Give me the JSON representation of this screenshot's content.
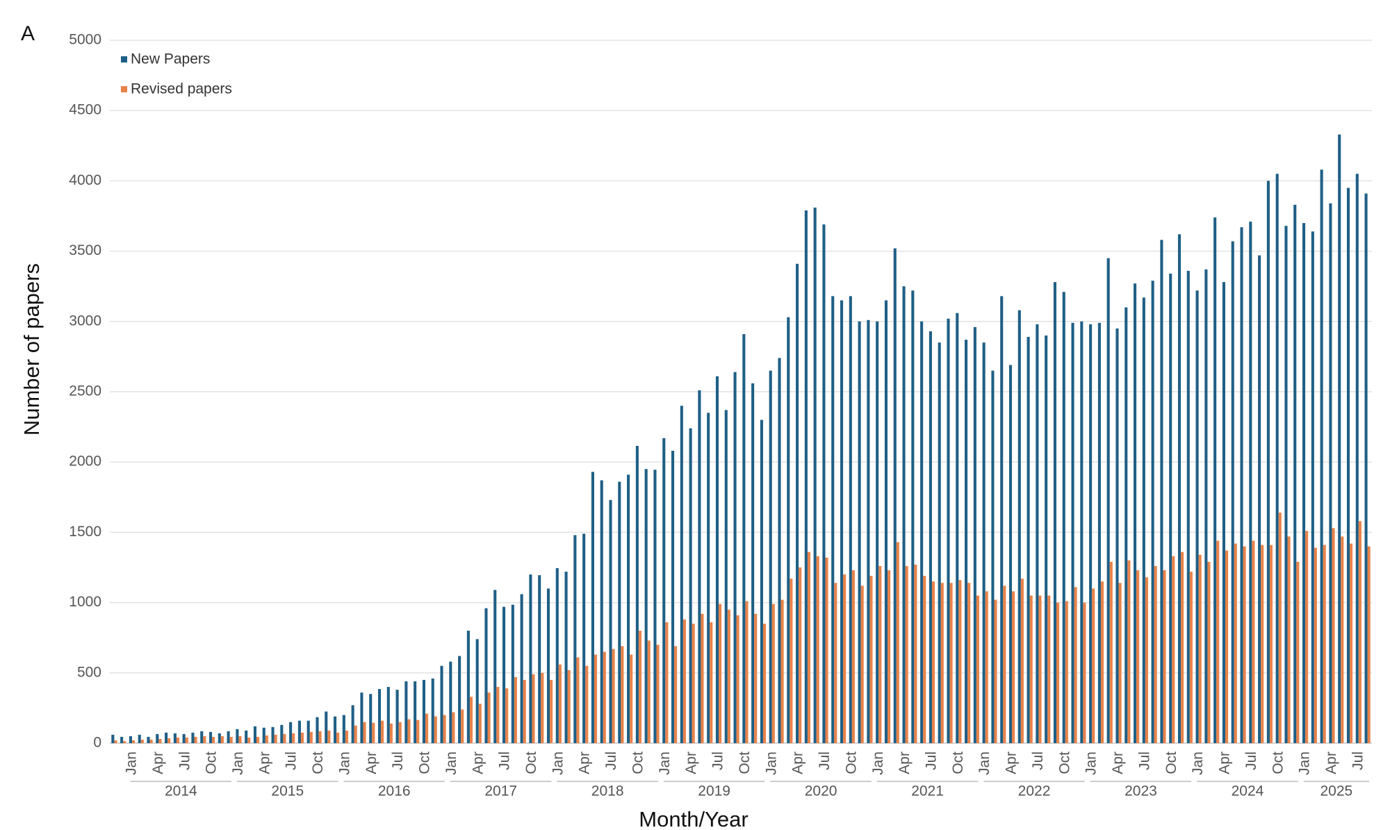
{
  "chart_data": {
    "type": "bar",
    "panel_label": "A",
    "x_label": "Month/Year",
    "y_label": "Number of papers",
    "categories": [
      null,
      null,
      "Jan",
      null,
      null,
      "Apr",
      null,
      null,
      "Jul",
      null,
      null,
      "Oct",
      null,
      null,
      "Jan",
      null,
      null,
      "Apr",
      null,
      null,
      "Jul",
      null,
      null,
      "Oct",
      null,
      null,
      "Jan",
      null,
      null,
      "Apr",
      null,
      null,
      "Jul",
      null,
      null,
      "Oct",
      null,
      null,
      "Jan",
      null,
      null,
      "Apr",
      null,
      null,
      "Jul",
      null,
      null,
      "Oct",
      null,
      null,
      "Jan",
      null,
      null,
      "Apr",
      null,
      null,
      "Jul",
      null,
      null,
      "Oct",
      null,
      null,
      "Jan",
      null,
      null,
      "Apr",
      null,
      null,
      "Jul",
      null,
      null,
      "Oct",
      null,
      null,
      "Jan",
      null,
      null,
      "Apr",
      null,
      null,
      "Jul",
      null,
      null,
      "Oct",
      null,
      null,
      "Jan",
      null,
      null,
      "Apr",
      null,
      null,
      "Jul",
      null,
      null,
      "Oct",
      null,
      null,
      "Jan",
      null,
      null,
      "Apr",
      null,
      null,
      "Jul",
      null,
      null,
      "Oct",
      null,
      null,
      "Jan",
      null,
      null,
      "Apr",
      null,
      null,
      "Jul",
      null,
      null,
      "Oct",
      null,
      null,
      "Jan",
      null,
      null,
      "Apr",
      null,
      null,
      "Jul",
      null,
      null,
      "Oct",
      null,
      null,
      "Jan",
      null,
      null,
      "Apr",
      null,
      null,
      "Jul",
      null
    ],
    "groups": [
      "2014",
      "2015",
      "2016",
      "2017",
      "2018",
      "2019",
      "2020",
      "2021",
      "2022",
      "2023",
      "2024",
      "2025"
    ],
    "series": [
      {
        "name": "New Papers",
        "color": "#1f5f85",
        "values": [
          60,
          45,
          50,
          60,
          45,
          65,
          75,
          70,
          65,
          75,
          85,
          80,
          70,
          85,
          100,
          90,
          120,
          110,
          115,
          130,
          150,
          160,
          160,
          185,
          225,
          190,
          200,
          270,
          360,
          350,
          385,
          400,
          380,
          440,
          440,
          450,
          460,
          550,
          580,
          620,
          800,
          740,
          960,
          1090,
          970,
          985,
          1060,
          1200,
          1195,
          1100,
          1245,
          1220,
          1480,
          1490,
          1930,
          1870,
          1730,
          1860,
          1910,
          2115,
          1950,
          1945,
          2170,
          2080,
          2400,
          2240,
          2510,
          2350,
          2610,
          2370,
          2640,
          2910,
          2560,
          2300,
          2650,
          2740,
          3030,
          3410,
          3790,
          3810,
          3690,
          3180,
          3150,
          3180,
          3000,
          3010,
          3000,
          3150,
          3520,
          3250,
          3220,
          3000,
          2930,
          2850,
          3020,
          3060,
          2870,
          2960,
          2850,
          2650,
          3180,
          2690,
          3080,
          2890,
          2980,
          2900,
          3280,
          3210,
          2990,
          3000,
          2980,
          2990,
          3450,
          2950,
          3100,
          3270,
          3170,
          3290,
          3580,
          3340,
          3620,
          3360,
          3220,
          3370,
          3740,
          3280,
          3570,
          3670,
          3710,
          3470,
          4000,
          4050,
          3680,
          3830,
          3700,
          3640,
          4080,
          3840,
          4330,
          3950,
          4050,
          3910
        ]
      },
      {
        "name": "Revised papers",
        "color": "#e8834a",
        "values": [
          20,
          15,
          20,
          25,
          25,
          30,
          35,
          40,
          40,
          45,
          50,
          45,
          50,
          45,
          50,
          40,
          45,
          55,
          60,
          65,
          70,
          75,
          80,
          85,
          90,
          75,
          90,
          125,
          150,
          145,
          160,
          140,
          150,
          170,
          165,
          210,
          190,
          200,
          220,
          240,
          330,
          280,
          360,
          400,
          390,
          470,
          450,
          490,
          500,
          450,
          560,
          520,
          610,
          550,
          630,
          650,
          670,
          690,
          630,
          800,
          730,
          700,
          860,
          690,
          880,
          850,
          920,
          860,
          990,
          950,
          910,
          1010,
          920,
          850,
          990,
          1020,
          1170,
          1250,
          1360,
          1330,
          1320,
          1140,
          1200,
          1230,
          1120,
          1190,
          1260,
          1230,
          1430,
          1260,
          1270,
          1190,
          1150,
          1140,
          1140,
          1160,
          1140,
          1050,
          1080,
          1020,
          1120,
          1080,
          1170,
          1050,
          1050,
          1050,
          1000,
          1010,
          1110,
          1000,
          1100,
          1150,
          1290,
          1140,
          1300,
          1230,
          1180,
          1260,
          1230,
          1330,
          1360,
          1220,
          1340,
          1290,
          1440,
          1370,
          1420,
          1400,
          1440,
          1410,
          1410,
          1640,
          1470,
          1290,
          1510,
          1390,
          1410,
          1530,
          1470,
          1420,
          1580,
          1400
        ]
      }
    ],
    "ylim": [
      0,
      5000
    ],
    "yticks": [
      0,
      500,
      1000,
      1500,
      2000,
      2500,
      3000,
      3500,
      4000,
      4500,
      5000
    ],
    "grid": true,
    "legend": "top-left"
  }
}
